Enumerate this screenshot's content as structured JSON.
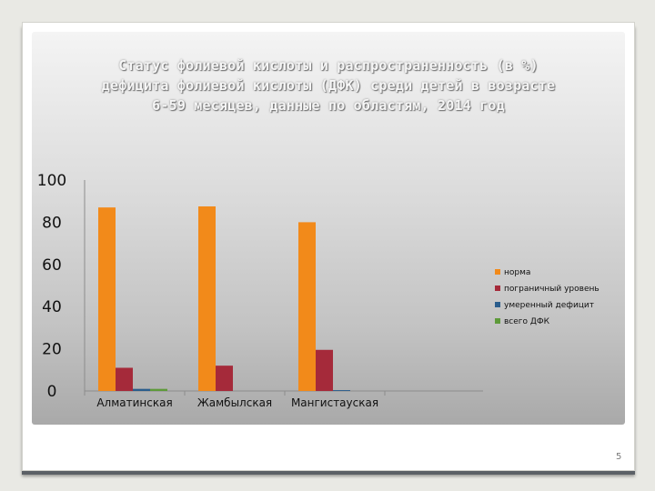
{
  "slide": {
    "title_lines": [
      "Статус фолиевой кислоты и распространенность (в %)",
      "дефицита фолиевой кислоты (ДФК) среди детей в возрасте",
      "6-59 месяцев, данные по областям, 2014 год"
    ],
    "page_number": "5"
  },
  "chart_data": {
    "type": "bar",
    "title": "Статус фолиевой кислоты и распространенность (в %) дефицита фолиевой кислоты (ДФК) среди детей в возрасте 6-59 месяцев, данные по областям, 2014 год",
    "categories": [
      "Алматинская",
      "Жамбылская",
      "Мангистауская"
    ],
    "series": [
      {
        "name": "норма",
        "color": "#f28a1a",
        "values": [
          87,
          87.5,
          80
        ]
      },
      {
        "name": "пограничный уровень",
        "color": "#a52a3a",
        "values": [
          11,
          12,
          19.5
        ]
      },
      {
        "name": "умеренный дефицит",
        "color": "#2a5d8c",
        "values": [
          1,
          0,
          0.4
        ]
      },
      {
        "name": "всего ДФК",
        "color": "#5e9a3a",
        "values": [
          1,
          0,
          0
        ]
      }
    ],
    "ylim": [
      0,
      100
    ],
    "yticks": [
      0,
      20,
      40,
      60,
      80,
      100
    ],
    "xlabel": "",
    "ylabel": "",
    "grid": false,
    "legend": "right"
  }
}
